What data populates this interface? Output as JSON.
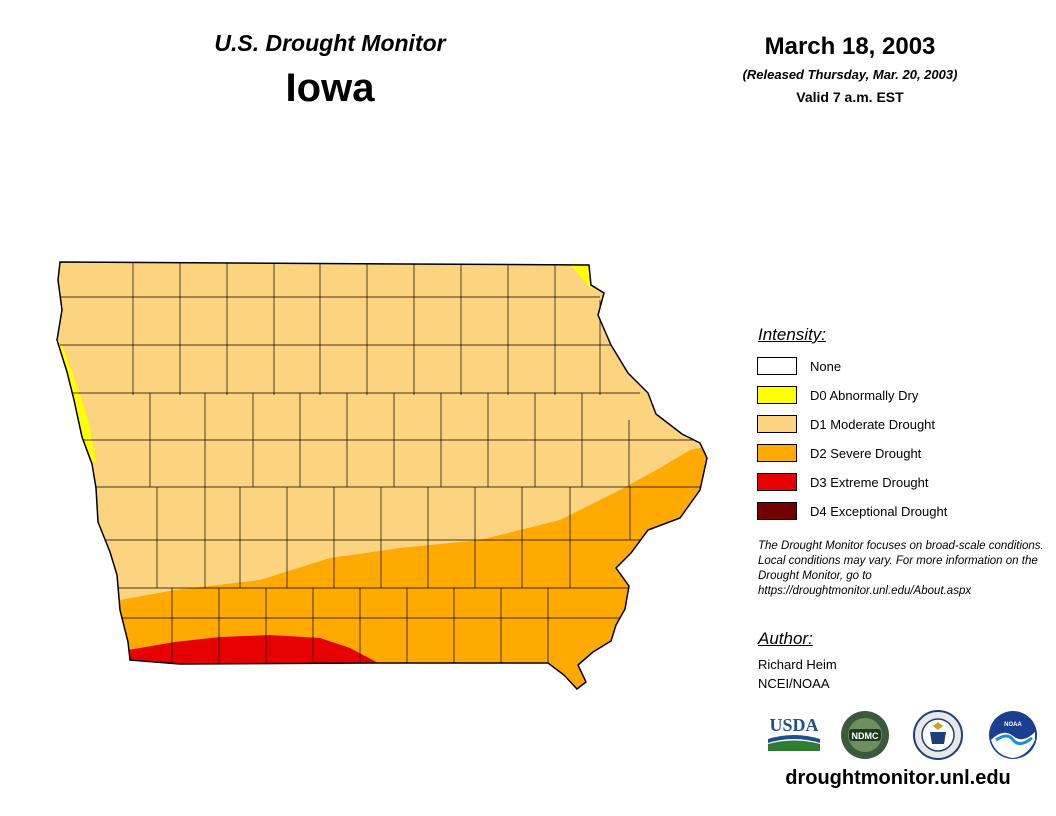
{
  "header": {
    "product_title": "U.S. Drought Monitor",
    "state": "Iowa",
    "date": "March 18, 2003",
    "released": "(Released Thursday, Mar. 20, 2003)",
    "valid": "Valid 7 a.m. EST"
  },
  "legend": {
    "title": "Intensity:",
    "items": [
      {
        "label": "None",
        "color": "#ffffff"
      },
      {
        "label": "D0 Abnormally Dry",
        "color": "#ffff00"
      },
      {
        "label": "D1 Moderate Drought",
        "color": "#fcd37f"
      },
      {
        "label": "D2 Severe Drought",
        "color": "#ffaa00"
      },
      {
        "label": "D3 Extreme Drought",
        "color": "#e60000"
      },
      {
        "label": "D4 Exceptional Drought",
        "color": "#730000"
      }
    ]
  },
  "disclaimer": "The Drought Monitor focuses on broad-scale conditions. Local conditions may vary. For more information on the Drought Monitor, go to https://droughtmonitor.unl.edu/About.aspx",
  "author": {
    "title": "Author:",
    "name": "Richard Heim",
    "org": "NCEI/NOAA"
  },
  "logos": {
    "usda": "USDA",
    "ndmc": "NDMC",
    "noaa": "NOAA"
  },
  "website": "droughtmonitor.unl.edu",
  "map_colors": {
    "d0": "#ffff00",
    "d1": "#fcd37f",
    "d2": "#ffaa00",
    "d3": "#e60000",
    "border": "#000000"
  }
}
